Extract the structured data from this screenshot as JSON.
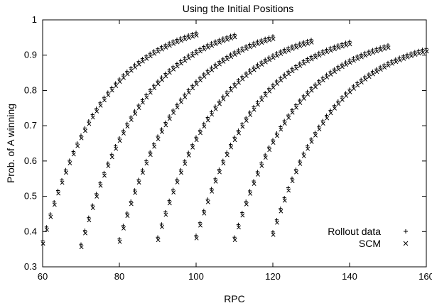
{
  "chart_data": {
    "type": "scatter",
    "title": "Using the Initial Positions",
    "xlabel": "RPC",
    "ylabel": "Prob. of A winning",
    "xlim": [
      60,
      160
    ],
    "ylim": [
      0.3,
      1.0
    ],
    "xticks": [
      60,
      80,
      100,
      120,
      140,
      160
    ],
    "yticks": [
      0.3,
      0.4,
      0.5,
      0.6,
      0.7,
      0.8,
      0.9,
      1.0
    ],
    "ytick_labels": [
      "0.3",
      "0.4",
      "0.5",
      "0.6",
      "0.7",
      "0.8",
      "0.9",
      "1"
    ],
    "grid": false,
    "legend": "bottom-right",
    "curve_groups": [
      {
        "x_start": 60,
        "x_end": 100,
        "y_start": 0.37,
        "y_end": 0.96
      },
      {
        "x_start": 70,
        "x_end": 110,
        "y_start": 0.36,
        "y_end": 0.955
      },
      {
        "x_start": 80,
        "x_end": 120,
        "y_start": 0.375,
        "y_end": 0.95
      },
      {
        "x_start": 90,
        "x_end": 130,
        "y_start": 0.38,
        "y_end": 0.94
      },
      {
        "x_start": 100,
        "x_end": 140,
        "y_start": 0.385,
        "y_end": 0.935
      },
      {
        "x_start": 110,
        "x_end": 150,
        "y_start": 0.38,
        "y_end": 0.925
      },
      {
        "x_start": 120,
        "x_end": 160,
        "y_start": 0.395,
        "y_end": 0.915
      }
    ],
    "series": [
      {
        "name": "Rollout data",
        "marker": "plus",
        "y_offset": 0.004
      },
      {
        "name": "SCM",
        "marker": "cross",
        "y_offset": -0.004
      }
    ]
  }
}
